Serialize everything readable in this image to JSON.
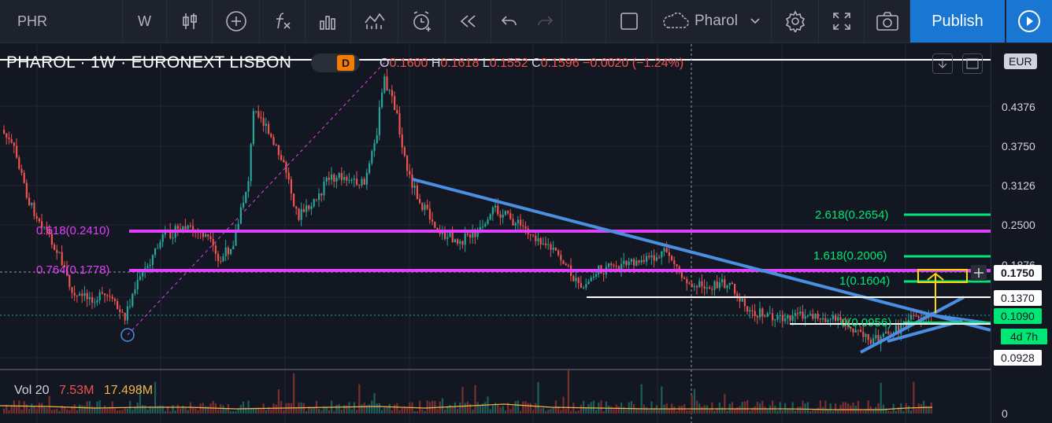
{
  "toolbar": {
    "symbol": "PHR",
    "interval": "W",
    "chart_name": "Pharol",
    "publish_label": "Publish"
  },
  "legend": {
    "title": "PHAROL · 1W · EURONEXT LISBON",
    "o_key": "O",
    "o_val": "0.1600",
    "h_key": "H",
    "h_val": "0.1618",
    "l_key": "L",
    "l_val": "0.1552",
    "c_key": "C",
    "c_val": "0.1596",
    "change": "−0.0020 (−1.24%)",
    "badge": "D"
  },
  "volume_legend": {
    "name": "Vol 20",
    "value1": "7.53M",
    "value2": "17.498M"
  },
  "price_axis": {
    "currency": "EUR",
    "labels": [
      "0.4376",
      "0.3750",
      "0.3126",
      "0.2500",
      "0.1370",
      "0.0928"
    ],
    "partial_label": "0.1876",
    "volume_zero": "0",
    "current_price": "0.1750",
    "last_price": "0.1090",
    "countdown": "4d 7h"
  },
  "annotations": {
    "fib_618": "0.618(0.2410)",
    "fib_764": "0.764(0.1778)",
    "ext_2618": "2.618(0.2654)",
    "ext_1618": "1.618(0.2006)",
    "ext_1": "1(0.1604)",
    "ext_0": "0(0.0956)"
  },
  "colors": {
    "background": "#131722",
    "up": "#26a69a",
    "down": "#ef5350",
    "magenta": "#e040fb",
    "trendline": "#4a90e2",
    "fib_green": "#00e676",
    "publish": "#1976d2"
  }
}
